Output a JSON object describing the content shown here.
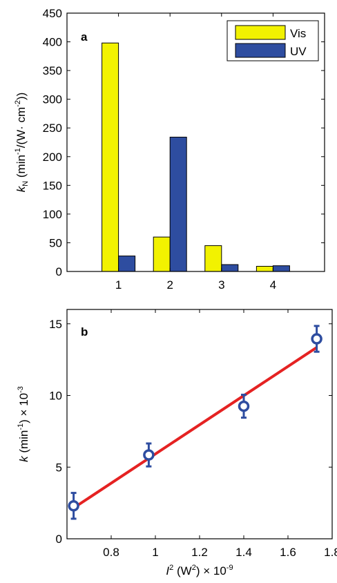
{
  "chart_data": [
    {
      "type": "bar",
      "panel_label": "a",
      "categories": [
        "1",
        "2",
        "3",
        "4"
      ],
      "series": [
        {
          "name": "Vis",
          "values": [
            398,
            60,
            45,
            9
          ],
          "color": "#f2f200"
        },
        {
          "name": "UV",
          "values": [
            27,
            234,
            12,
            10
          ],
          "color": "#2e4da0"
        }
      ],
      "xlim": [
        0,
        5
      ],
      "ylim": [
        0,
        450
      ],
      "yticks": [
        "0",
        "50",
        "100",
        "150",
        "200",
        "250",
        "300",
        "350",
        "400",
        "450"
      ],
      "xticks": [
        "1",
        "2",
        "3",
        "4"
      ],
      "ylabel": {
        "prefix": "k",
        "sub": "N",
        "t1": " (min",
        "sup1": "-1",
        "t2": "/(W· cm",
        "sup2": "-2",
        "t3": "))"
      },
      "legend_position": "top-right",
      "grid": false
    },
    {
      "type": "scatter",
      "panel_label": "b",
      "points": [
        {
          "x": 0.63,
          "y": 2.3,
          "err": 0.9
        },
        {
          "x": 0.97,
          "y": 5.85,
          "err": 0.8
        },
        {
          "x": 1.4,
          "y": 9.25,
          "err": 0.8
        },
        {
          "x": 1.73,
          "y": 13.95,
          "err": 0.9
        }
      ],
      "fit_line": {
        "x": [
          0.63,
          1.73
        ],
        "y": [
          2.15,
          13.35
        ],
        "color": "#e52222"
      },
      "marker_color": "#2e4da0",
      "xlim": [
        0.6,
        1.8
      ],
      "ylim": [
        0,
        16
      ],
      "xticks": [
        "0.8",
        "1",
        "1.2",
        "1.4",
        "1.6",
        "1.8"
      ],
      "yticks": [
        "0",
        "5",
        "10",
        "15"
      ],
      "xlabel": {
        "prefix": "I",
        "sup1": "2",
        "t1": " (W",
        "sup2": "2",
        "t2": ") × 10",
        "sup3": "-9"
      },
      "ylabel": {
        "prefix": "k",
        "t1": " (min",
        "sup1": "-1",
        "t2": ") × 10",
        "sup2": "-3"
      },
      "grid": false
    }
  ]
}
